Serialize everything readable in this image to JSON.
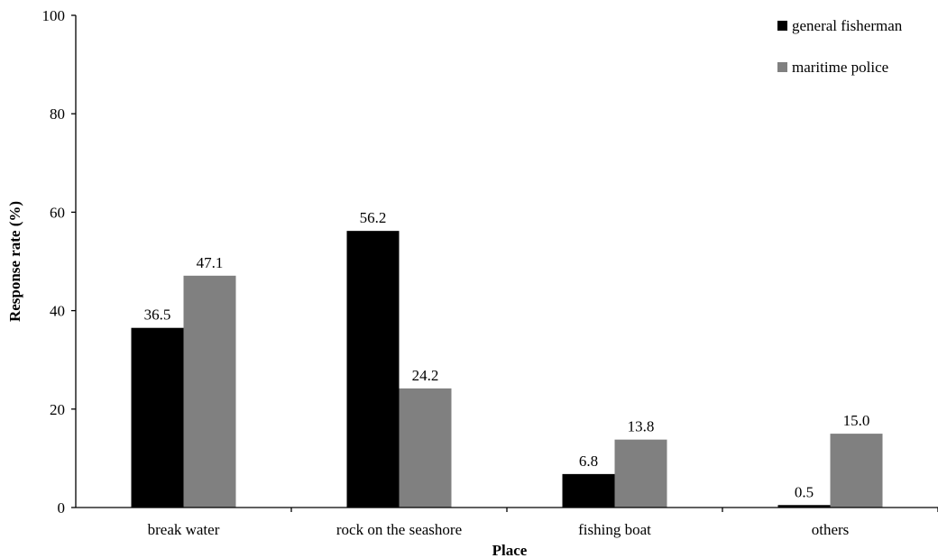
{
  "chart_data": {
    "type": "bar",
    "title": "",
    "xlabel": "Place",
    "ylabel": "Response rate (%)",
    "ylim": [
      0,
      100
    ],
    "yticks": [
      0,
      20,
      40,
      60,
      80,
      100
    ],
    "categories": [
      "break water",
      "rock on the seashore",
      "fishing boat",
      "others"
    ],
    "series": [
      {
        "name": "general fisherman",
        "color": "#000000",
        "values": [
          36.5,
          56.2,
          6.8,
          0.5
        ],
        "labels": [
          "36.5",
          "56.2",
          "6.8",
          "0.5"
        ]
      },
      {
        "name": "maritime police",
        "color": "#808080",
        "values": [
          47.1,
          24.2,
          13.8,
          15.0
        ],
        "labels": [
          "47.1",
          "24.2",
          "13.8",
          "15.0"
        ]
      }
    ],
    "grid": false,
    "legend_position": "top-right"
  }
}
